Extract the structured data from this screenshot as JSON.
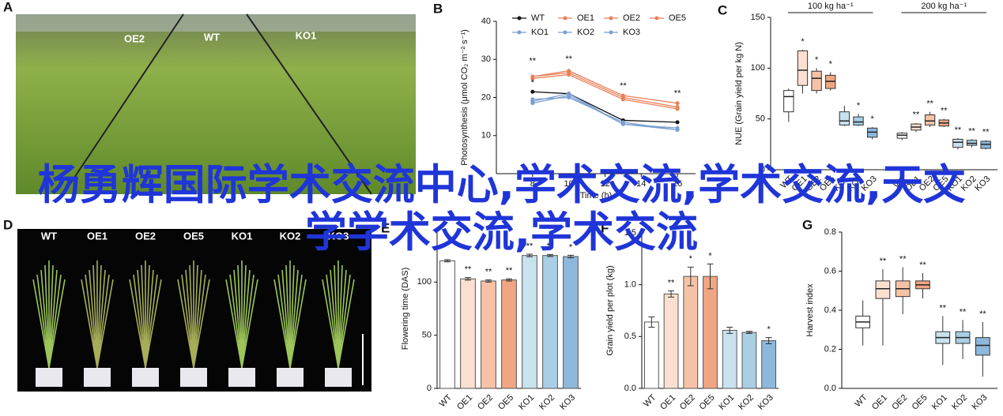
{
  "panels": [
    "A",
    "B",
    "C",
    "D",
    "E",
    "F",
    "G"
  ],
  "photos": [
    {
      "labels": [
        "OE2",
        "WT",
        "KO1"
      ]
    },
    {
      "labels": [
        "WT",
        "OE1",
        "OE2",
        "OE5",
        "KO1",
        "KO2",
        "KO3"
      ]
    }
  ],
  "overlay_text": "杨勇辉国际学术交流中心,学术交流,学术交流,天文学学术交流,学术交流",
  "chart_data": [
    {
      "type": "line",
      "x_label": "Time (h)",
      "y_label": "Photosynthesis (μmol CO₂ m⁻² s⁻¹)",
      "x": [
        8,
        10,
        13,
        16
      ],
      "xlim": [
        6,
        17
      ],
      "xticks": [
        8,
        10,
        12,
        14,
        16
      ],
      "ylim": [
        0,
        40
      ],
      "yticks": [
        10,
        20,
        30,
        40
      ],
      "series": [
        {
          "name": "WT",
          "color": "#111111",
          "values": [
            21.5,
            21,
            14,
            13.5
          ]
        },
        {
          "name": "OE1",
          "color": "#e8805a",
          "values": [
            25.5,
            27,
            20.5,
            18.5
          ]
        },
        {
          "name": "OE2",
          "color": "#e8805a",
          "values": [
            25,
            26,
            19.5,
            17
          ]
        },
        {
          "name": "OE5",
          "color": "#e8805a",
          "values": [
            25.5,
            26.5,
            20,
            17.5
          ]
        },
        {
          "name": "KO1",
          "color": "#7a9fd0",
          "values": [
            19,
            21,
            13,
            12
          ]
        },
        {
          "name": "KO2",
          "color": "#7a9fd0",
          "values": [
            19.5,
            20,
            13.5,
            11.5
          ]
        },
        {
          "name": "KO3",
          "color": "#7a9fd0",
          "values": [
            18.5,
            20.5,
            13,
            11.5
          ]
        }
      ],
      "annotations": [
        {
          "x": 8,
          "y": 29.5,
          "text": "**"
        },
        {
          "x": 8,
          "y": 23.8,
          "text": "*"
        },
        {
          "x": 10,
          "y": 30,
          "text": "**"
        },
        {
          "x": 13,
          "y": 23,
          "text": "**"
        },
        {
          "x": 16,
          "y": 21,
          "text": "**"
        }
      ]
    },
    {
      "type": "box",
      "y_label": "NUE (Grain yield per kg N)",
      "categories": [
        "WT",
        "OE1",
        "OE2",
        "OE5",
        "KO1",
        "KO2",
        "KO3"
      ],
      "ylim": [
        0,
        150
      ],
      "yticks": [
        0,
        50,
        100,
        150
      ],
      "colors": [
        "#ffffff",
        "#fbe0d2",
        "#f6c2a6",
        "#f0a683",
        "#c8e2ee",
        "#a9cfe5",
        "#8db8dc"
      ],
      "series": [
        {
          "name": "100 kg ha⁻¹",
          "min": [
            47,
            75,
            75,
            78,
            43,
            43,
            30
          ],
          "q1": [
            57,
            83,
            78,
            80,
            44,
            44,
            32
          ],
          "median": [
            72,
            98,
            90,
            87,
            48,
            47,
            37
          ],
          "q3": [
            78,
            117,
            97,
            93,
            57,
            52,
            41
          ],
          "max": [
            80,
            118,
            100,
            96,
            63,
            55,
            42
          ],
          "annotations": [
            null,
            "*",
            "*",
            "*",
            null,
            "*",
            "*"
          ]
        },
        {
          "name": "200 kg ha⁻¹",
          "min": [
            29,
            37,
            42,
            42,
            20,
            22,
            20
          ],
          "q1": [
            31,
            39,
            44,
            43,
            22,
            24,
            21
          ],
          "median": [
            34,
            42,
            48,
            46,
            27,
            26,
            25
          ],
          "q3": [
            36,
            45,
            54,
            49,
            30,
            29,
            28
          ],
          "max": [
            37,
            46,
            57,
            50,
            31,
            30,
            29
          ],
          "annotations": [
            null,
            "**",
            "**",
            "**",
            "**",
            "**",
            "**"
          ]
        }
      ]
    },
    {
      "type": "bar",
      "y_label": "Flowering time (DAS)",
      "categories": [
        "WT",
        "OE1",
        "OE2",
        "OE5",
        "KO1",
        "KO2",
        "KO3"
      ],
      "values": [
        120,
        103,
        101,
        102,
        125,
        125,
        124
      ],
      "errors": [
        1,
        1.2,
        1,
        1,
        1.2,
        1,
        1.2
      ],
      "colors": [
        "#ffffff",
        "#fbe0d2",
        "#f6c2a6",
        "#f0a683",
        "#c8e2ee",
        "#a9cfe5",
        "#8db8dc"
      ],
      "ylim": [
        0,
        150
      ],
      "yticks": [
        0,
        50,
        100
      ],
      "annotations": [
        null,
        "**",
        "**",
        "**",
        "**",
        "**",
        "*"
      ]
    },
    {
      "type": "bar",
      "y_label": "Grain yield per plot (kg)",
      "categories": [
        "WT",
        "OE1",
        "OE2",
        "OE5",
        "KO1",
        "KO2",
        "KO3"
      ],
      "values": [
        0.64,
        0.91,
        1.08,
        1.08,
        0.56,
        0.54,
        0.46
      ],
      "errors": [
        0.05,
        0.03,
        0.09,
        0.12,
        0.03,
        0.01,
        0.03
      ],
      "colors": [
        "#ffffff",
        "#fbe0d2",
        "#f6c2a6",
        "#f0a683",
        "#c8e2ee",
        "#a9cfe5",
        "#8db8dc"
      ],
      "ylim": [
        0,
        1.5
      ],
      "yticks": [
        {
          "value": 0,
          "label": "0.0"
        },
        0.5,
        {
          "value": 1,
          "label": "1.0"
        },
        1.5
      ],
      "annotations": [
        null,
        "**",
        "*",
        "*",
        null,
        null,
        "*"
      ]
    },
    {
      "type": "box",
      "y_label": "Harvest index",
      "categories": [
        "WT",
        "OE1",
        "OE2",
        "OE5",
        "KO1",
        "KO2",
        "KO3"
      ],
      "ylim": [
        0,
        0.8
      ],
      "yticks": [
        {
          "value": 0,
          "label": "0.0"
        },
        0.2,
        0.4,
        0.6,
        0.8
      ],
      "colors": [
        "#ffffff",
        "#fbe0d2",
        "#f6c2a6",
        "#f0a683",
        "#c8e2ee",
        "#a9cfe5",
        "#8db8dc"
      ],
      "series": [
        {
          "min": [
            0.22,
            0.22,
            0.38,
            0.46,
            0.12,
            0.15,
            0.06
          ],
          "q1": [
            0.31,
            0.46,
            0.47,
            0.51,
            0.23,
            0.23,
            0.17
          ],
          "median": [
            0.34,
            0.51,
            0.51,
            0.53,
            0.26,
            0.26,
            0.22
          ],
          "q3": [
            0.37,
            0.55,
            0.55,
            0.55,
            0.29,
            0.29,
            0.26
          ],
          "max": [
            0.45,
            0.61,
            0.62,
            0.59,
            0.37,
            0.35,
            0.34
          ],
          "annotations": [
            null,
            "**",
            "**",
            "**",
            "**",
            "**",
            "**"
          ]
        }
      ]
    }
  ]
}
